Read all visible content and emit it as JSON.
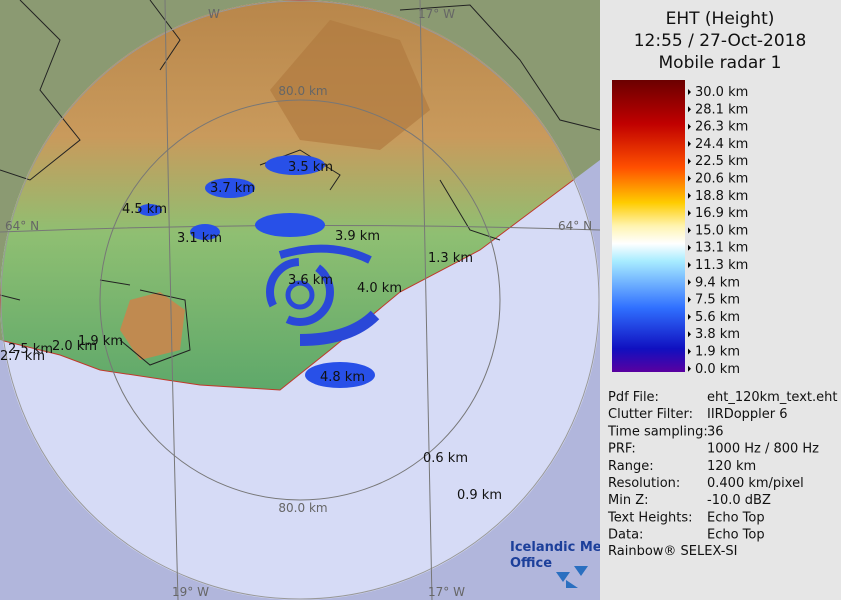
{
  "header": {
    "lines": [
      "EHT (Height)",
      "12:55 / 27-Oct-2018",
      "Mobile radar 1"
    ]
  },
  "legend": {
    "labels": [
      "30.0 km",
      "28.1 km",
      "26.3 km",
      "24.4 km",
      "22.5 km",
      "20.6 km",
      "18.8 km",
      "16.9 km",
      "15.0 km",
      "13.1 km",
      "11.3 km",
      "9.4 km",
      "7.5 km",
      "5.6 km",
      "3.8 km",
      "1.9 km",
      "0.0 km"
    ]
  },
  "info": {
    "rows": [
      [
        "Pdf File:",
        "eht_120km_text.eht"
      ],
      [
        "Clutter Filter:",
        "IIRDoppler 6"
      ],
      [
        "Time sampling:",
        "36"
      ],
      [
        "PRF:",
        "1000 Hz / 800 Hz"
      ],
      [
        "Range:",
        "120 km"
      ],
      [
        "Resolution:",
        "0.400 km/pixel"
      ],
      [
        "Min Z:",
        "-10.0 dBZ"
      ],
      [
        "Text Heights:",
        "Echo Top"
      ],
      [
        "Data:",
        "Echo Top"
      ]
    ],
    "footer": "Rainbow® SELEX-SI"
  },
  "map": {
    "grid_labels": [
      "W",
      "17° W",
      "80.0 km",
      "64° N",
      "64° N",
      "80.0 km",
      "19° W",
      "17° W"
    ],
    "echo_labels": [
      "3.5 km",
      "3.7 km",
      "4.5 km",
      "3.1 km",
      "3.9 km",
      "1.3 km",
      "3.6 km",
      "4.0 km",
      "4.8 km",
      "2.5 km",
      "2.0 km",
      "1.9 km",
      "2.7 km",
      "0.6 km",
      "0.9 km"
    ],
    "logo": [
      "Icelandic Met",
      "Office"
    ]
  }
}
